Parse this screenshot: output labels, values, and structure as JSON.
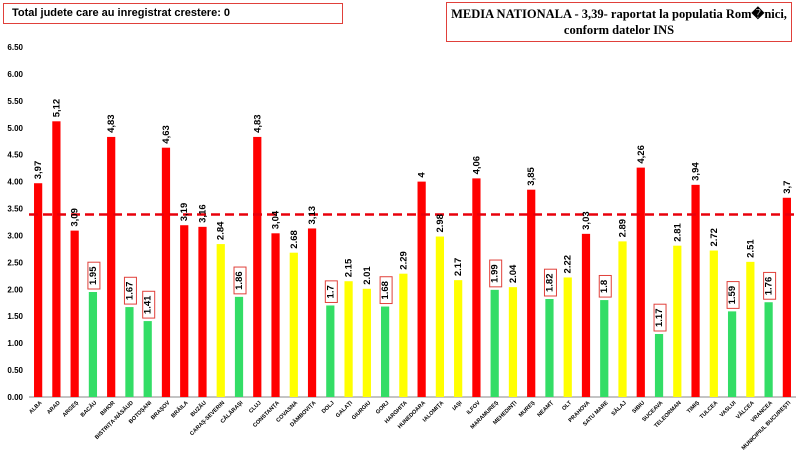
{
  "notice": "Total judete care au inregistrat crestere: 0",
  "title_line1": "MEDIA NATIONALA - 3,39-  raportat la populatia Rom�nici,",
  "title_line2": "conform datelor INS",
  "colors": {
    "red": "#ff0000",
    "green": "#33dd66",
    "yellow": "#ffff00",
    "reference": "#e8000b",
    "label_box": "#e0403a"
  },
  "chart_data": {
    "type": "bar",
    "ylim": [
      0,
      6.5
    ],
    "y_ticks": [
      "0.00",
      "0.50",
      "1.00",
      "1.50",
      "2.00",
      "2.50",
      "3.00",
      "3.50",
      "4.00",
      "4.50",
      "5.00",
      "5.50",
      "6.00",
      "6.50"
    ],
    "reference_line": 3.39,
    "categories": [
      "ALBA",
      "ARAD",
      "ARGEȘ",
      "BACĂU",
      "BIHOR",
      "BISTRIȚA-NĂSĂUD",
      "BOTOȘANI",
      "BRAȘOV",
      "BRĂILA",
      "BUZĂU",
      "CARAȘ-SEVERIN",
      "CĂLĂRAȘI",
      "CLUJ",
      "CONSTANȚA",
      "COVASNA",
      "DÂMBOVIȚA",
      "DOLJ",
      "GALAȚI",
      "GIURGIU",
      "GORJ",
      "HARGHITA",
      "HUNEDOARA",
      "IALOMIȚA",
      "IAȘI",
      "ILFOV",
      "MARAMUREȘ",
      "MEHEDINȚI",
      "MUREȘ",
      "NEAMȚ",
      "OLT",
      "PRAHOVA",
      "SATU MARE",
      "SĂLAJ",
      "SIBIU",
      "SUCEAVA",
      "TELEORMAN",
      "TIMIȘ",
      "TULCEA",
      "VASLUI",
      "VÂLCEA",
      "VRANCEA",
      "MUNICIPIUL BUCUREȘTI"
    ],
    "values": [
      3.97,
      5.12,
      3.09,
      1.95,
      4.83,
      1.67,
      1.41,
      4.63,
      3.19,
      3.16,
      2.84,
      1.86,
      4.83,
      3.04,
      2.68,
      3.13,
      1.7,
      2.15,
      2.01,
      1.68,
      2.29,
      4,
      2.98,
      2.17,
      4.06,
      1.99,
      2.04,
      3.85,
      1.82,
      2.22,
      3.03,
      1.8,
      2.89,
      4.26,
      1.17,
      2.81,
      3.94,
      2.72,
      1.59,
      2.51,
      1.76,
      3.7
    ],
    "value_labels": [
      "3,97",
      "5,12",
      "3,09",
      "1.95",
      "4,83",
      "1.67",
      "1.41",
      "4,63",
      "3,19",
      "3,16",
      "2.84",
      "1.86",
      "4,83",
      "3,04",
      "2.68",
      "3,13",
      "1.7",
      "2.15",
      "2.01",
      "1.68",
      "2.29",
      "4",
      "2.98",
      "2.17",
      "4,06",
      "1.99",
      "2.04",
      "3,85",
      "1.82",
      "2.22",
      "3,03",
      "1.8",
      "2.89",
      "4,26",
      "1.17",
      "2.81",
      "3,94",
      "2.72",
      "1.59",
      "2.51",
      "1.76",
      "3,7"
    ],
    "bar_colors": [
      "red",
      "red",
      "red",
      "green",
      "red",
      "green",
      "green",
      "red",
      "red",
      "red",
      "yellow",
      "green",
      "red",
      "red",
      "yellow",
      "red",
      "green",
      "yellow",
      "yellow",
      "green",
      "yellow",
      "red",
      "yellow",
      "yellow",
      "red",
      "green",
      "yellow",
      "red",
      "green",
      "yellow",
      "red",
      "green",
      "yellow",
      "red",
      "green",
      "yellow",
      "red",
      "yellow",
      "green",
      "yellow",
      "green",
      "red"
    ],
    "boxed_labels": [
      "1.95",
      "1.67",
      "1.41",
      "1.86",
      "1.7",
      "1.68",
      "1.99",
      "1.82",
      "1.8",
      "1.17",
      "1.59",
      "1.76"
    ]
  }
}
